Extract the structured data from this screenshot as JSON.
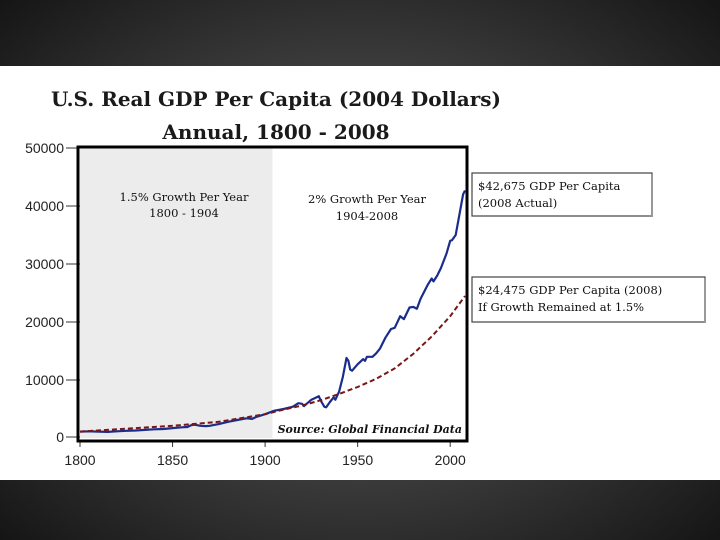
{
  "chart_data": {
    "type": "line",
    "title": "U.S. Real GDP Per Capita (2004 Dollars)",
    "subtitle": "Annual, 1800 - 2008",
    "xlabel": "",
    "ylabel": "",
    "xlim": [
      1800,
      2008
    ],
    "ylim": [
      0,
      50000
    ],
    "x_ticks": [
      1800,
      1850,
      1900,
      1950,
      2000
    ],
    "y_ticks": [
      0,
      10000,
      20000,
      30000,
      40000,
      50000
    ],
    "shaded_region": {
      "from": 1800,
      "to": 1904,
      "color": "#ececec"
    },
    "series": [
      {
        "name": "Actual GDP Per Capita",
        "color": "#1b2d8c",
        "style": "solid",
        "points": [
          [
            1800,
            1100
          ],
          [
            1805,
            1150
          ],
          [
            1810,
            1100
          ],
          [
            1815,
            1050
          ],
          [
            1820,
            1150
          ],
          [
            1825,
            1250
          ],
          [
            1830,
            1300
          ],
          [
            1835,
            1400
          ],
          [
            1840,
            1500
          ],
          [
            1845,
            1550
          ],
          [
            1850,
            1700
          ],
          [
            1855,
            1850
          ],
          [
            1858,
            1900
          ],
          [
            1860,
            2200
          ],
          [
            1862,
            2300
          ],
          [
            1865,
            2100
          ],
          [
            1868,
            2050
          ],
          [
            1870,
            2100
          ],
          [
            1875,
            2400
          ],
          [
            1880,
            2800
          ],
          [
            1885,
            3100
          ],
          [
            1890,
            3400
          ],
          [
            1893,
            3300
          ],
          [
            1895,
            3600
          ],
          [
            1900,
            4100
          ],
          [
            1905,
            4700
          ],
          [
            1910,
            5000
          ],
          [
            1915,
            5400
          ],
          [
            1918,
            6000
          ],
          [
            1920,
            5900
          ],
          [
            1921,
            5500
          ],
          [
            1925,
            6600
          ],
          [
            1929,
            7200
          ],
          [
            1930,
            6500
          ],
          [
            1932,
            5400
          ],
          [
            1933,
            5300
          ],
          [
            1935,
            6200
          ],
          [
            1937,
            7000
          ],
          [
            1938,
            6600
          ],
          [
            1940,
            8000
          ],
          [
            1942,
            10500
          ],
          [
            1944,
            13800
          ],
          [
            1945,
            13300
          ],
          [
            1946,
            11800
          ],
          [
            1947,
            11600
          ],
          [
            1950,
            12700
          ],
          [
            1953,
            13600
          ],
          [
            1954,
            13300
          ],
          [
            1955,
            14000
          ],
          [
            1958,
            14000
          ],
          [
            1960,
            14600
          ],
          [
            1962,
            15400
          ],
          [
            1965,
            17300
          ],
          [
            1968,
            18800
          ],
          [
            1970,
            19000
          ],
          [
            1973,
            21000
          ],
          [
            1975,
            20500
          ],
          [
            1978,
            22500
          ],
          [
            1980,
            22600
          ],
          [
            1982,
            22300
          ],
          [
            1984,
            24000
          ],
          [
            1988,
            26500
          ],
          [
            1990,
            27500
          ],
          [
            1991,
            27000
          ],
          [
            1993,
            28000
          ],
          [
            1995,
            29300
          ],
          [
            1998,
            31800
          ],
          [
            2000,
            34000
          ],
          [
            2001,
            34100
          ],
          [
            2003,
            35000
          ],
          [
            2005,
            38500
          ],
          [
            2007,
            42000
          ],
          [
            2008,
            42675
          ]
        ]
      },
      {
        "name": "If Growth Remained at 1.5%",
        "color": "#7a1616",
        "style": "dashed",
        "points": [
          [
            1800,
            1100
          ],
          [
            1850,
            2100
          ],
          [
            1875,
            2800
          ],
          [
            1900,
            4100
          ],
          [
            1910,
            4900
          ],
          [
            1920,
            5600
          ],
          [
            1930,
            6500
          ],
          [
            1940,
            7600
          ],
          [
            1950,
            8800
          ],
          [
            1960,
            10200
          ],
          [
            1970,
            12000
          ],
          [
            1980,
            14500
          ],
          [
            1990,
            17500
          ],
          [
            2000,
            21000
          ],
          [
            2008,
            24475
          ]
        ]
      }
    ],
    "annotations": {
      "period1_line1": "1.5% Growth Per Year",
      "period1_line2": "1800 - 1904",
      "period2_line1": "2% Growth Per Year",
      "period2_line2": "1904-2008",
      "actual_box_line1": "$42,675 GDP Per Capita",
      "actual_box_line2": "(2008 Actual)",
      "counterfactual_box_line1": "$24,475 GDP Per Capita (2008)",
      "counterfactual_box_line2": "If Growth Remained at 1.5%",
      "source": "Source: Global Financial Data"
    }
  }
}
